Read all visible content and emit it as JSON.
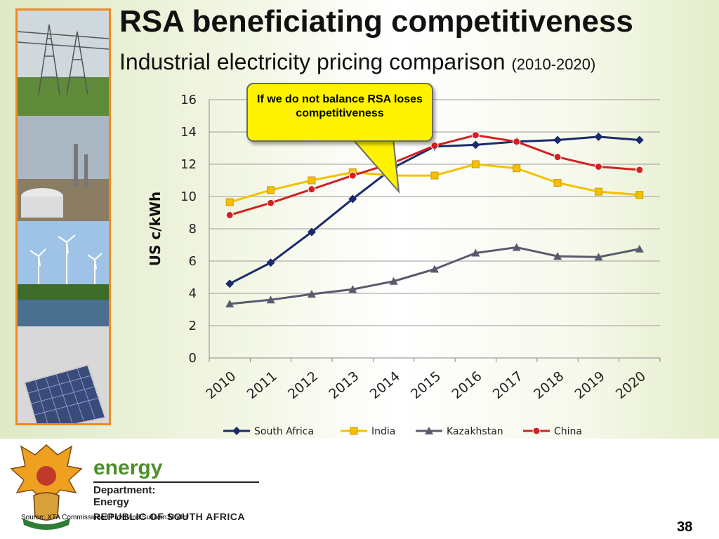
{
  "slide": {
    "title": "RSA beneficiating competitiveness",
    "subtitle": "Industrial electricity pricing comparison",
    "subtitle_period": "(2010-2020)",
    "callout": "If we do not balance RSA loses competitiveness",
    "source": "Source: XTA Commissioned Frost and Sullivan Model",
    "page_number": "38"
  },
  "branding": {
    "energy_word": "energy",
    "dept_line1": "Department:",
    "dept_line2": "Energy",
    "republic": "REPUBLIC OF SOUTH AFRICA"
  },
  "colors": {
    "south_africa": "#1a2a6c",
    "india": "#f5c000",
    "kazakhstan": "#5a5a6e",
    "china": "#d42020",
    "accent_orange": "#f08a1c",
    "energy_green": "#4d8f2a"
  },
  "chart_data": {
    "type": "line",
    "ylabel": "US c/kWh",
    "xlabel": "",
    "ylim": [
      0,
      16
    ],
    "yticks": [
      0,
      2,
      4,
      6,
      8,
      10,
      12,
      14,
      16
    ],
    "grid": true,
    "legend_position": "bottom",
    "categories": [
      "2010",
      "2011",
      "2012",
      "2013",
      "2014",
      "2015",
      "2016",
      "2017",
      "2018",
      "2019",
      "2020"
    ],
    "series": [
      {
        "name": "South Africa",
        "marker": "diamond",
        "color": "#1a2a6c",
        "values": [
          4.6,
          5.9,
          7.8,
          9.85,
          11.8,
          13.1,
          13.2,
          13.4,
          13.5,
          13.7,
          13.5
        ]
      },
      {
        "name": "India",
        "marker": "square",
        "color": "#f5c000",
        "values": [
          9.65,
          10.4,
          11.0,
          11.5,
          11.3,
          11.3,
          12.0,
          11.75,
          10.85,
          10.3,
          10.1
        ]
      },
      {
        "name": "Kazakhstan",
        "marker": "triangle",
        "color": "#5a5a6e",
        "values": [
          3.35,
          3.6,
          3.95,
          4.25,
          4.75,
          5.5,
          6.5,
          6.85,
          6.3,
          6.25,
          6.75
        ]
      },
      {
        "name": "China",
        "marker": "circle",
        "color": "#d42020",
        "values": [
          8.85,
          9.6,
          10.45,
          11.3,
          12.1,
          13.15,
          13.8,
          13.4,
          12.45,
          11.85,
          11.65
        ]
      }
    ]
  }
}
